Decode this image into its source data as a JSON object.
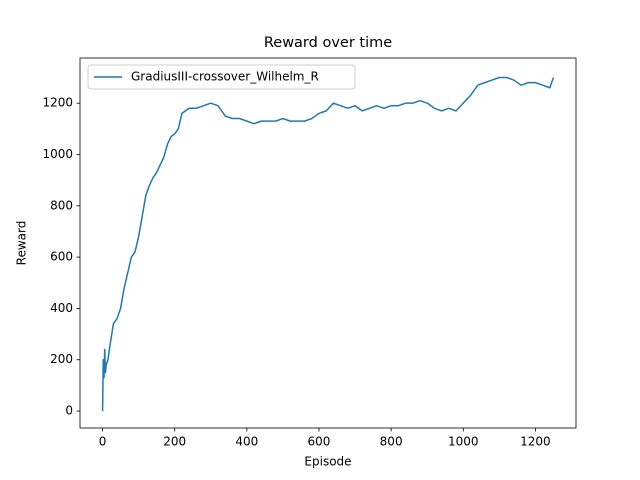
{
  "chart_data": {
    "type": "line",
    "title": "Reward over time",
    "x_label": "Episode",
    "y_label": "Reward",
    "x": [
      0,
      2,
      4,
      6,
      8,
      10,
      15,
      20,
      30,
      40,
      50,
      60,
      70,
      80,
      90,
      100,
      110,
      120,
      130,
      140,
      150,
      160,
      170,
      180,
      190,
      200,
      210,
      220,
      240,
      260,
      280,
      300,
      320,
      340,
      360,
      380,
      400,
      420,
      440,
      460,
      480,
      500,
      520,
      540,
      560,
      580,
      600,
      620,
      640,
      660,
      680,
      700,
      720,
      740,
      760,
      780,
      800,
      820,
      840,
      860,
      880,
      900,
      920,
      940,
      960,
      980,
      1000,
      1020,
      1040,
      1060,
      1080,
      1100,
      1120,
      1140,
      1160,
      1180,
      1200,
      1220,
      1240,
      1250
    ],
    "series": [
      {
        "name": "GradiusIII-crossover_Wilhelm_R",
        "color": "#1f77b4",
        "values": [
          0,
          200,
          130,
          240,
          150,
          180,
          200,
          250,
          340,
          360,
          400,
          480,
          540,
          600,
          620,
          680,
          760,
          840,
          880,
          910,
          930,
          960,
          990,
          1040,
          1070,
          1080,
          1100,
          1160,
          1180,
          1180,
          1190,
          1200,
          1190,
          1150,
          1140,
          1140,
          1130,
          1120,
          1130,
          1130,
          1130,
          1140,
          1130,
          1130,
          1130,
          1140,
          1160,
          1170,
          1200,
          1190,
          1180,
          1190,
          1170,
          1180,
          1190,
          1180,
          1190,
          1190,
          1200,
          1200,
          1210,
          1200,
          1180,
          1170,
          1180,
          1170,
          1200,
          1230,
          1270,
          1280,
          1290,
          1300,
          1300,
          1290,
          1270,
          1280,
          1280,
          1270,
          1260,
          1300
        ]
      }
    ],
    "xlim": [
      -62.5,
      1312.5
    ],
    "ylim": [
      -66,
      1376
    ],
    "xticks": [
      0,
      200,
      400,
      600,
      800,
      1000,
      1200
    ],
    "yticks": [
      0,
      200,
      400,
      600,
      800,
      1000,
      1200
    ],
    "legend": "upper left"
  }
}
